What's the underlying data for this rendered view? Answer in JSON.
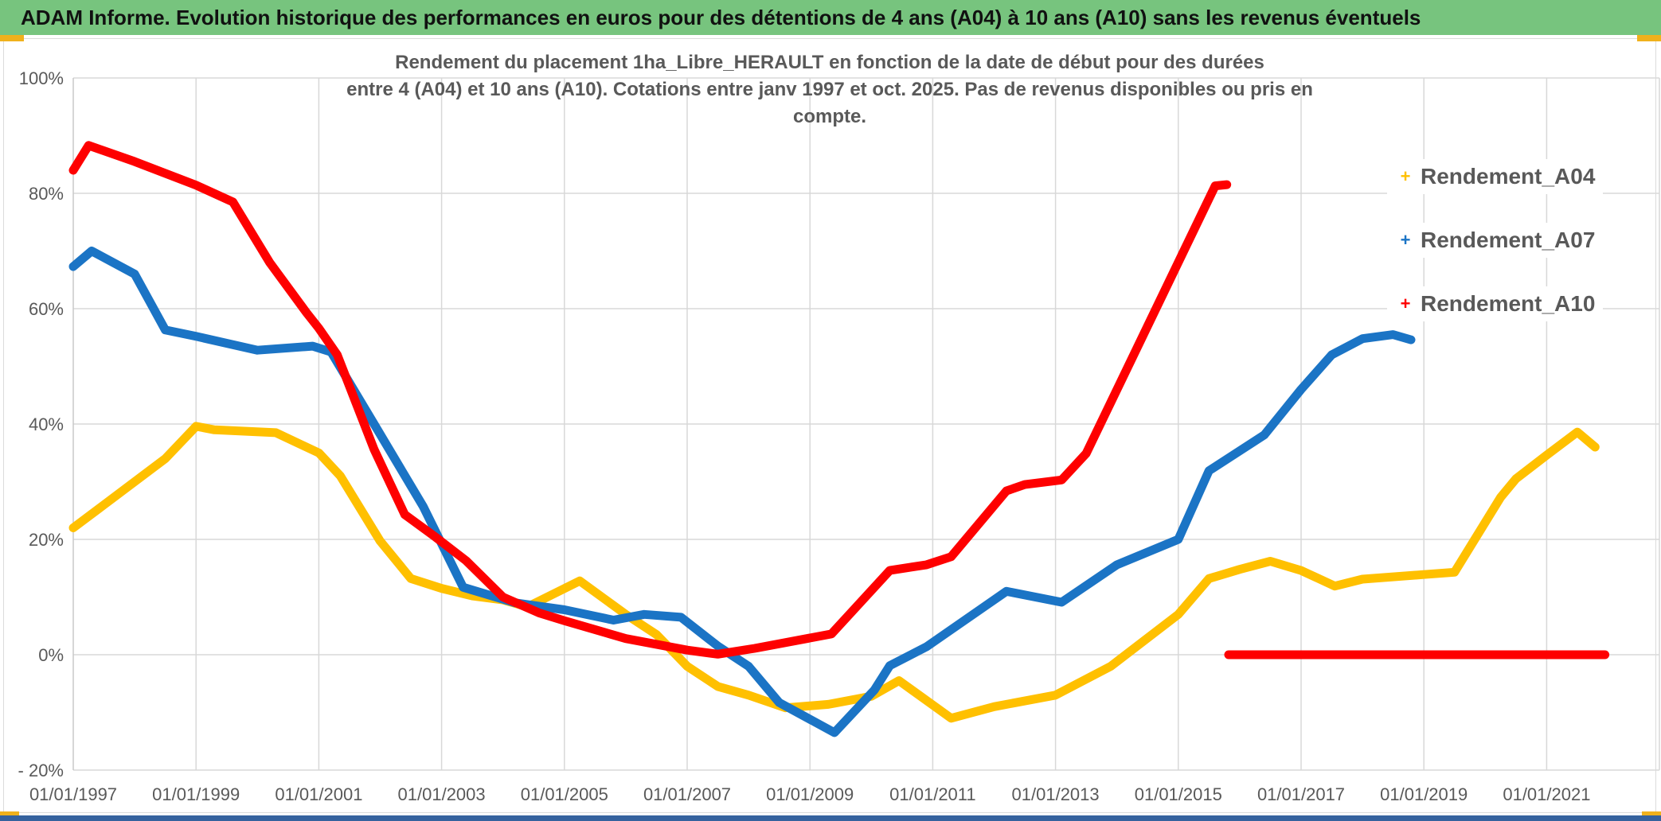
{
  "header": {
    "title": "ADAM Informe. Evolution historique des performances en euros pour des détentions de 4 ans (A04) à 10 ans (A10) sans les revenus éventuels"
  },
  "chart": {
    "title_line1": "Rendement du placement 1ha_Libre_HERAULT en fonction de la date de début pour des durées",
    "title_line2": "entre 4 (A04) et 10 ans (A10). Cotations entre janv 1997 et oct. 2025. Pas de revenus disponibles ou pris en compte.",
    "legend": [
      {
        "label": "Rendement_A04",
        "marker": "+",
        "color": "#FFC000"
      },
      {
        "label": "Rendement_A07",
        "marker": "+",
        "color": "#1B74C5"
      },
      {
        "label": "Rendement_A10",
        "marker": "+",
        "color": "#FE0000"
      }
    ]
  },
  "colors": {
    "header_green": "#77C47E",
    "accent_yellow": "#F0B11C",
    "bottom_bar_blue": "#35629E",
    "gridline": "#D8D8D8",
    "text_gray": "#595959",
    "series_a04": "#FFC000",
    "series_a07": "#1B74C5",
    "series_a10": "#FE0000"
  },
  "chart_data": {
    "type": "line",
    "title": "Rendement du placement 1ha_Libre_HERAULT en fonction de la date de début pour des durées entre 4 (A04) et 10 ans (A10). Cotations entre janv 1997 et oct. 2025. Pas de revenus disponibles ou pris en compte.",
    "grid": true,
    "legend_position": "right",
    "x_axis": {
      "tick_years": [
        1997,
        1999,
        2001,
        2003,
        2005,
        2007,
        2009,
        2011,
        2013,
        2015,
        2017,
        2019,
        2021
      ],
      "tick_labels": [
        "01/01/1997",
        "01/01/1999",
        "01/01/2001",
        "01/01/2003",
        "01/01/2005",
        "01/01/2007",
        "01/01/2009",
        "01/01/2011",
        "01/01/2013",
        "01/01/2015",
        "01/01/2017",
        "01/01/2019",
        "01/01/2021"
      ],
      "xlim": [
        1996.85,
        2022.85
      ]
    },
    "y_axis": {
      "tick_values": [
        100,
        80,
        60,
        40,
        20,
        0,
        -20
      ],
      "tick_labels": [
        "100%",
        "80%",
        "60%",
        "40%",
        "20%",
        "0%",
        "- 20%"
      ],
      "ylim": [
        -20,
        100
      ],
      "unit": "percent"
    },
    "series": [
      {
        "name": "Rendement_A04",
        "color": "#FFC000",
        "points": [
          [
            1997.0,
            22
          ],
          [
            1997.5,
            26
          ],
          [
            1998.0,
            30
          ],
          [
            1998.5,
            34
          ],
          [
            1999.0,
            39.6
          ],
          [
            1999.3,
            39.0
          ],
          [
            2000.3,
            38.5
          ],
          [
            2001.0,
            35
          ],
          [
            2001.35,
            31
          ],
          [
            2002.0,
            19.7
          ],
          [
            2002.5,
            13.2
          ],
          [
            2003.0,
            11.5
          ],
          [
            2003.5,
            10.2
          ],
          [
            2004.0,
            9.5
          ],
          [
            2004.4,
            8.3
          ],
          [
            2005.25,
            12.8
          ],
          [
            2006.0,
            7
          ],
          [
            2006.5,
            3.5
          ],
          [
            2007.0,
            -2
          ],
          [
            2007.5,
            -5.5
          ],
          [
            2008.0,
            -7
          ],
          [
            2008.6,
            -9.2
          ],
          [
            2009.3,
            -8.6
          ],
          [
            2010.0,
            -7.2
          ],
          [
            2010.45,
            -4.5
          ],
          [
            2011.3,
            -11
          ],
          [
            2012.0,
            -9
          ],
          [
            2013.0,
            -7
          ],
          [
            2013.9,
            -2
          ],
          [
            2015.0,
            7
          ],
          [
            2015.5,
            13.2
          ],
          [
            2016.0,
            14.8
          ],
          [
            2016.5,
            16.2
          ],
          [
            2017.0,
            14.6
          ],
          [
            2017.55,
            11.9
          ],
          [
            2018.0,
            13.1
          ],
          [
            2019.0,
            13.9
          ],
          [
            2019.5,
            14.3
          ],
          [
            2020.25,
            27.3
          ],
          [
            2020.5,
            30.5
          ],
          [
            2021.0,
            34.6
          ],
          [
            2021.5,
            38.6
          ],
          [
            2021.79,
            36
          ]
        ]
      },
      {
        "name": "Rendement_A07",
        "color": "#1B74C5",
        "points": [
          [
            1997.0,
            67.3
          ],
          [
            1997.3,
            70
          ],
          [
            1998.0,
            66
          ],
          [
            1998.5,
            56.3
          ],
          [
            1999.0,
            55.2
          ],
          [
            2000.0,
            52.8
          ],
          [
            2000.9,
            53.5
          ],
          [
            2001.2,
            52.5
          ],
          [
            2001.9,
            40
          ],
          [
            2002.7,
            25.7
          ],
          [
            2003.35,
            11.7
          ],
          [
            2004.2,
            9.0
          ],
          [
            2005.0,
            7.8
          ],
          [
            2005.8,
            6.0
          ],
          [
            2006.3,
            7.0
          ],
          [
            2006.9,
            6.5
          ],
          [
            2007.5,
            1.5
          ],
          [
            2008.0,
            -2
          ],
          [
            2008.5,
            -8.3
          ],
          [
            2009.4,
            -13.5
          ],
          [
            2010.05,
            -6.1
          ],
          [
            2010.3,
            -1.9
          ],
          [
            2010.9,
            1.4
          ],
          [
            2012.2,
            11.0
          ],
          [
            2013.1,
            9.1
          ],
          [
            2014.0,
            15.6
          ],
          [
            2015.0,
            20
          ],
          [
            2015.5,
            31.9
          ],
          [
            2016.4,
            38.1
          ],
          [
            2017.0,
            46
          ],
          [
            2017.5,
            52
          ],
          [
            2018.0,
            54.8
          ],
          [
            2018.5,
            55.5
          ],
          [
            2018.79,
            54.6
          ]
        ]
      },
      {
        "name": "Rendement_A10",
        "color": "#FE0000",
        "points": [
          [
            1997.0,
            84
          ],
          [
            1997.25,
            88.3
          ],
          [
            1998.0,
            85.5
          ],
          [
            1999.0,
            81.4
          ],
          [
            1999.6,
            78.5
          ],
          [
            2000.2,
            68
          ],
          [
            2000.8,
            59.3
          ],
          [
            2001.0,
            56.6
          ],
          [
            2001.3,
            52
          ],
          [
            2001.9,
            35.6
          ],
          [
            2002.4,
            24.3
          ],
          [
            2002.9,
            20.4
          ],
          [
            2003.4,
            16.3
          ],
          [
            2004.0,
            10
          ],
          [
            2004.6,
            7.2
          ],
          [
            2005.0,
            5.9
          ],
          [
            2006.0,
            2.8
          ],
          [
            2007.0,
            0.8
          ],
          [
            2007.5,
            0.1
          ],
          [
            2008.1,
            1.1
          ],
          [
            2009.35,
            3.6
          ],
          [
            2010.3,
            14.6
          ],
          [
            2010.9,
            15.6
          ],
          [
            2011.3,
            17
          ],
          [
            2012.2,
            28.4
          ],
          [
            2012.5,
            29.5
          ],
          [
            2013.1,
            30.3
          ],
          [
            2013.5,
            34.9
          ],
          [
            2015.6,
            81.3
          ],
          [
            2015.79,
            81.5
          ]
        ]
      },
      {
        "name": "Rendement_A10_flat_zero_segment",
        "color": "#FE0000",
        "points": [
          [
            2015.82,
            0
          ],
          [
            2021.95,
            0
          ]
        ]
      }
    ]
  }
}
